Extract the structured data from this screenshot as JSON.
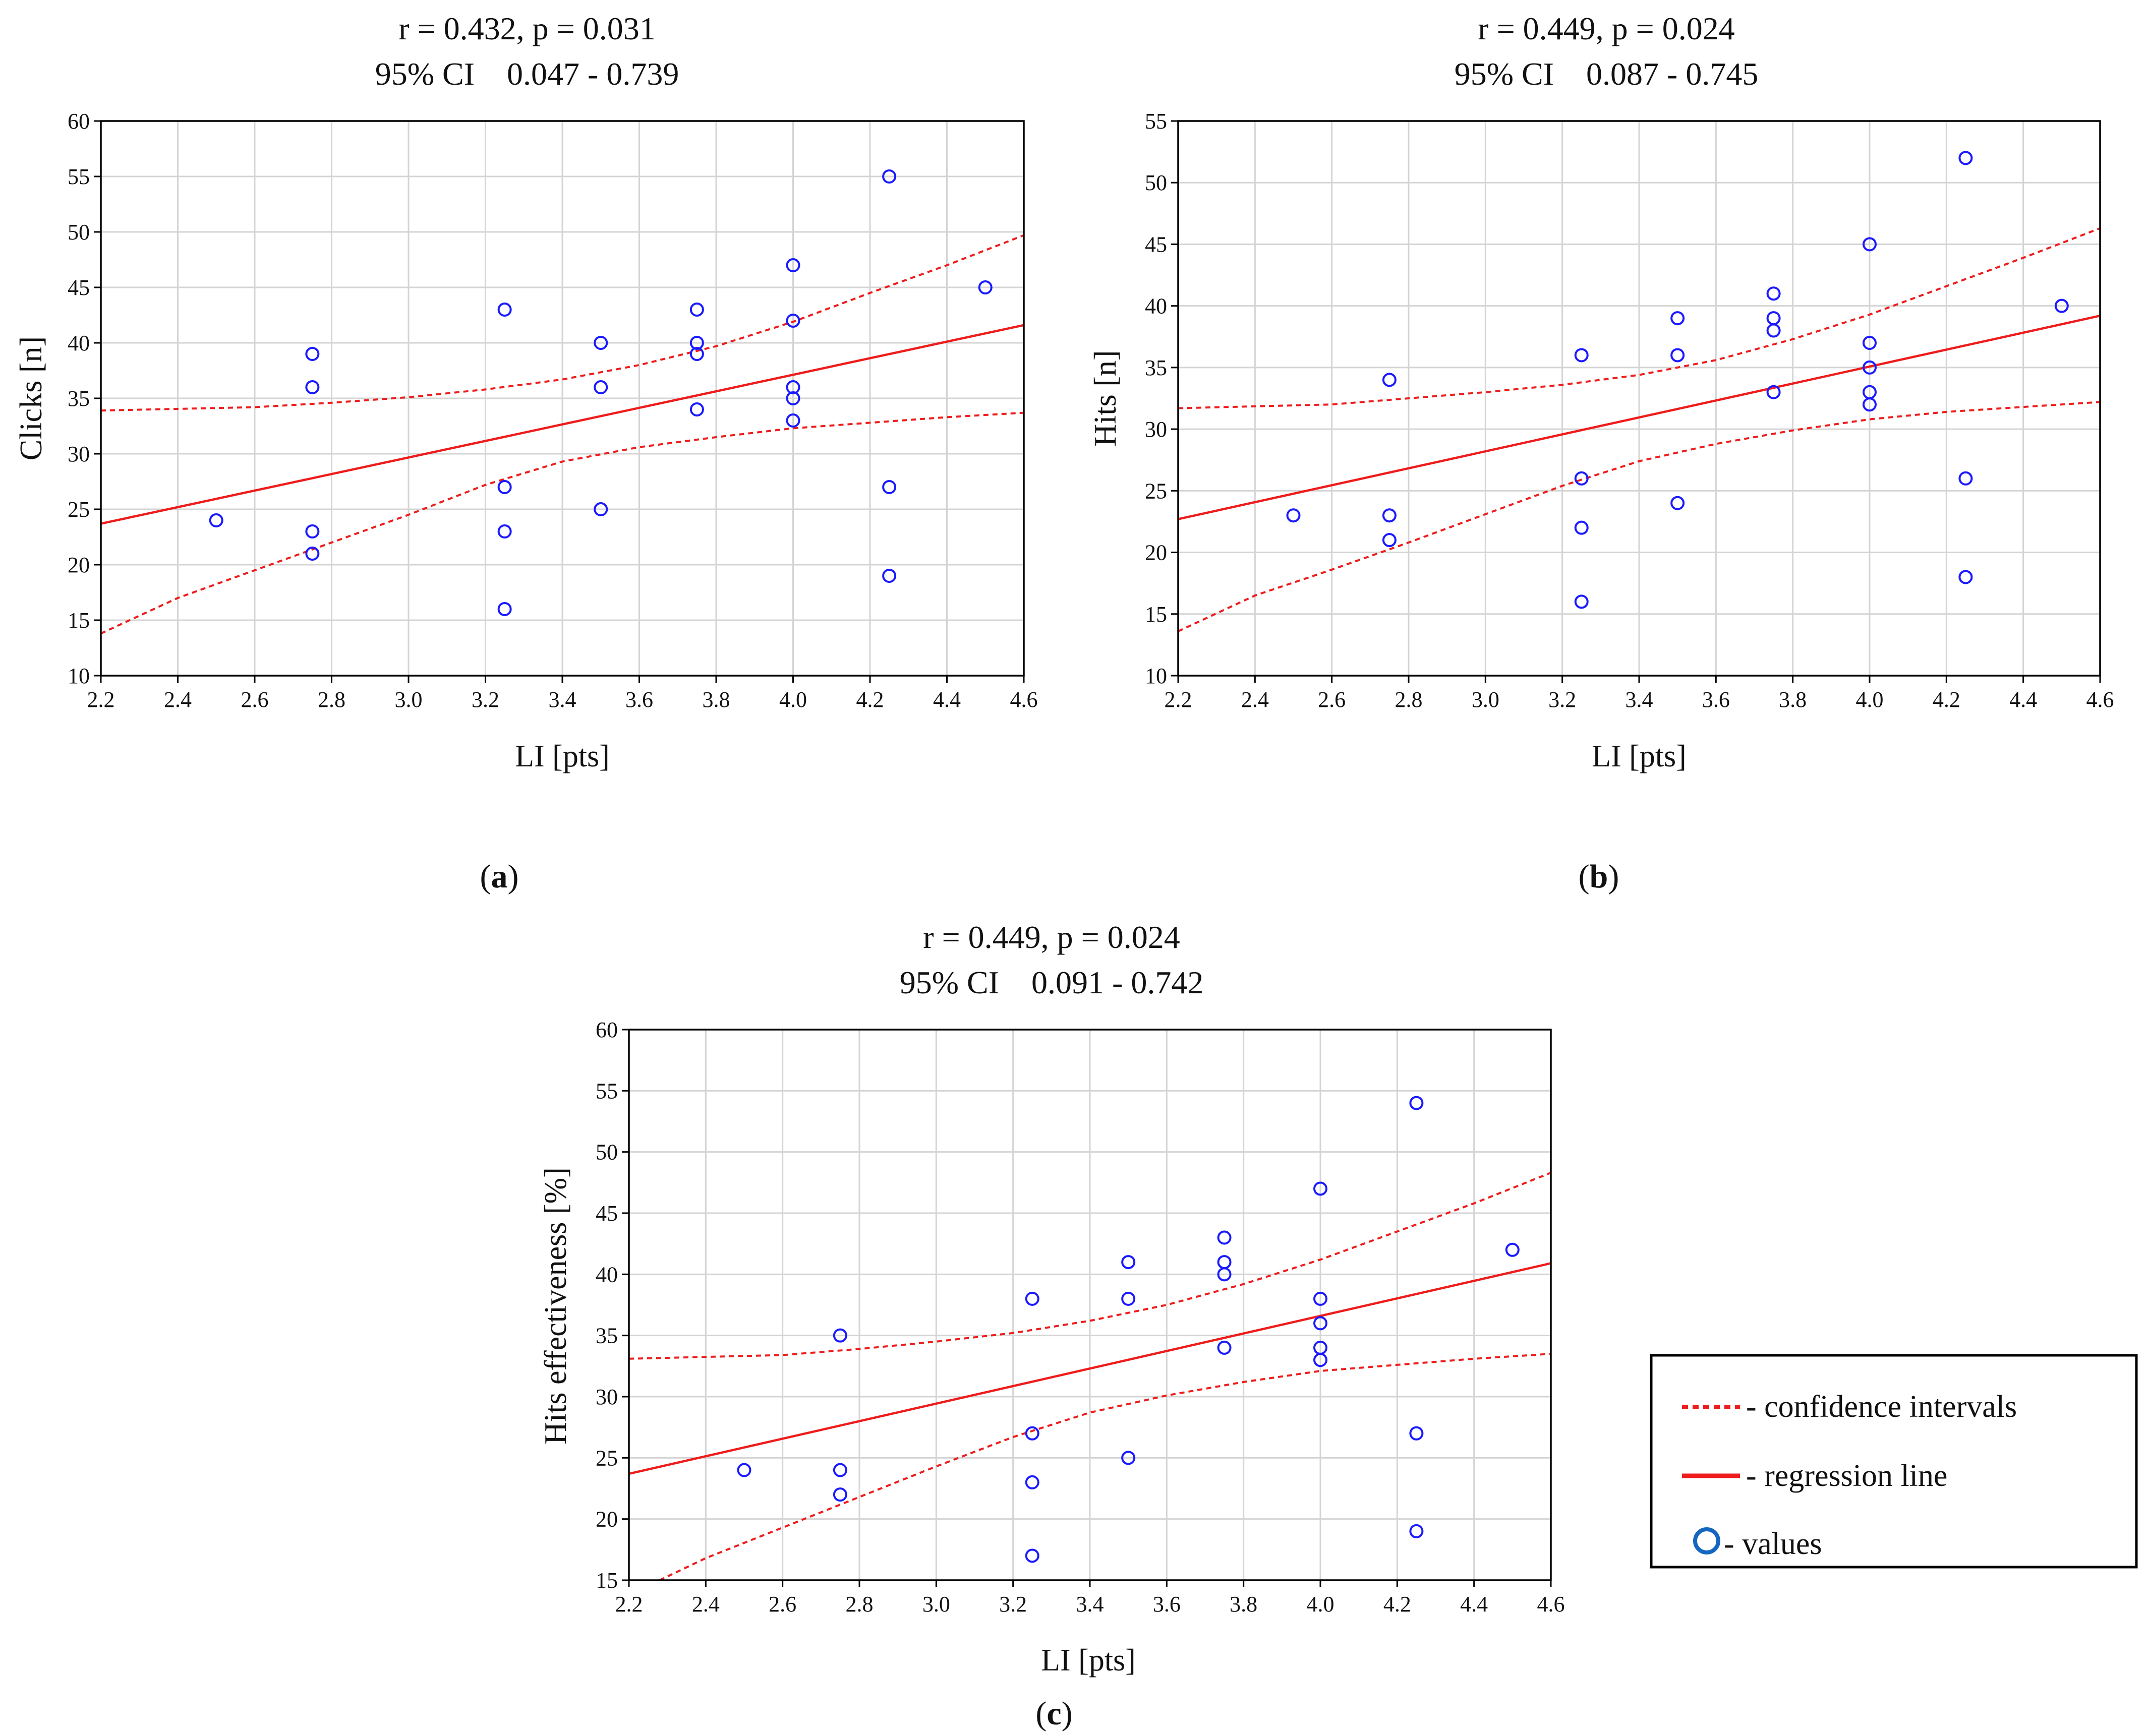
{
  "chart_data": [
    {
      "type": "scatter",
      "panel_label": "(a)",
      "panel_letter": "a",
      "title_line1": "r = 0.432, p = 0.031",
      "title_line2": "95% CI    0.047 - 0.739",
      "xlabel": "LI [pts]",
      "ylabel": "Clicks [n]",
      "xlim": [
        2.2,
        4.6
      ],
      "ylim": [
        10,
        60
      ],
      "xticks": [
        2.2,
        2.4,
        2.6,
        2.8,
        3.0,
        3.2,
        3.4,
        3.6,
        3.8,
        4.0,
        4.2,
        4.4,
        4.6
      ],
      "xtick_labels": [
        "2.2",
        "2.4",
        "2.6",
        "2.8",
        "3.0",
        "3.2",
        "3.4",
        "3.6",
        "3.8",
        "4.0",
        "4.2",
        "4.4",
        "4.6"
      ],
      "yticks": [
        10,
        15,
        20,
        25,
        30,
        35,
        40,
        45,
        50,
        55,
        60
      ],
      "ytick_labels": [
        "10",
        "15",
        "20",
        "25",
        "30",
        "35",
        "40",
        "45",
        "50",
        "55",
        "60"
      ],
      "points": [
        [
          2.5,
          24
        ],
        [
          2.75,
          39
        ],
        [
          2.75,
          36
        ],
        [
          2.75,
          23
        ],
        [
          2.75,
          21
        ],
        [
          3.25,
          43
        ],
        [
          3.25,
          27
        ],
        [
          3.25,
          23
        ],
        [
          3.25,
          16
        ],
        [
          3.5,
          40
        ],
        [
          3.5,
          36
        ],
        [
          3.5,
          25
        ],
        [
          3.75,
          43
        ],
        [
          3.75,
          40
        ],
        [
          3.75,
          39
        ],
        [
          3.75,
          34
        ],
        [
          4.0,
          47
        ],
        [
          4.0,
          42
        ],
        [
          4.0,
          36
        ],
        [
          4.0,
          35
        ],
        [
          4.0,
          33
        ],
        [
          4.25,
          55
        ],
        [
          4.25,
          27
        ],
        [
          4.25,
          19
        ],
        [
          4.5,
          45
        ]
      ],
      "regression": [
        [
          2.2,
          23.7
        ],
        [
          4.6,
          41.6
        ]
      ],
      "ci_upper": [
        [
          2.2,
          33.9
        ],
        [
          2.6,
          34.2
        ],
        [
          2.8,
          34.6
        ],
        [
          3.0,
          35.1
        ],
        [
          3.2,
          35.8
        ],
        [
          3.4,
          36.7
        ],
        [
          3.6,
          38.0
        ],
        [
          3.8,
          39.7
        ],
        [
          4.0,
          41.9
        ],
        [
          4.2,
          44.5
        ],
        [
          4.4,
          47.0
        ],
        [
          4.6,
          49.7
        ]
      ],
      "ci_lower": [
        [
          2.2,
          13.8
        ],
        [
          2.4,
          17.0
        ],
        [
          2.6,
          19.5
        ],
        [
          2.8,
          22.0
        ],
        [
          3.0,
          24.5
        ],
        [
          3.2,
          27.2
        ],
        [
          3.4,
          29.3
        ],
        [
          3.6,
          30.6
        ],
        [
          3.8,
          31.5
        ],
        [
          4.0,
          32.3
        ],
        [
          4.2,
          32.8
        ],
        [
          4.4,
          33.3
        ],
        [
          4.6,
          33.7
        ]
      ]
    },
    {
      "type": "scatter",
      "panel_label": "(b)",
      "panel_letter": "b",
      "title_line1": "r = 0.449, p = 0.024",
      "title_line2": "95% CI    0.087 - 0.745",
      "xlabel": "LI [pts]",
      "ylabel": "Hits [n]",
      "xlim": [
        2.2,
        4.6
      ],
      "ylim": [
        10,
        55
      ],
      "xticks": [
        2.2,
        2.4,
        2.6,
        2.8,
        3.0,
        3.2,
        3.4,
        3.6,
        3.8,
        4.0,
        4.2,
        4.4,
        4.6
      ],
      "xtick_labels": [
        "2.2",
        "2.4",
        "2.6",
        "2.8",
        "3.0",
        "3.2",
        "3.4",
        "3.6",
        "3.8",
        "4.0",
        "4.2",
        "4.4",
        "4.6"
      ],
      "yticks": [
        10,
        15,
        20,
        25,
        30,
        35,
        40,
        45,
        50,
        55
      ],
      "ytick_labels": [
        "10",
        "15",
        "20",
        "25",
        "30",
        "35",
        "40",
        "45",
        "50",
        "55"
      ],
      "points": [
        [
          2.5,
          23
        ],
        [
          2.75,
          34
        ],
        [
          2.75,
          23
        ],
        [
          2.75,
          21
        ],
        [
          3.25,
          36
        ],
        [
          3.25,
          26
        ],
        [
          3.25,
          22
        ],
        [
          3.25,
          16
        ],
        [
          3.5,
          39
        ],
        [
          3.5,
          36
        ],
        [
          3.5,
          24
        ],
        [
          3.75,
          41
        ],
        [
          3.75,
          39
        ],
        [
          3.75,
          38
        ],
        [
          3.75,
          33
        ],
        [
          4.0,
          45
        ],
        [
          4.0,
          37
        ],
        [
          4.0,
          35
        ],
        [
          4.0,
          33
        ],
        [
          4.0,
          32
        ],
        [
          4.25,
          52
        ],
        [
          4.25,
          26
        ],
        [
          4.25,
          18
        ],
        [
          4.5,
          40
        ]
      ],
      "regression": [
        [
          2.2,
          22.7
        ],
        [
          4.6,
          39.2
        ]
      ],
      "ci_upper": [
        [
          2.2,
          31.7
        ],
        [
          2.6,
          32.0
        ],
        [
          2.8,
          32.5
        ],
        [
          3.0,
          33.0
        ],
        [
          3.2,
          33.6
        ],
        [
          3.4,
          34.4
        ],
        [
          3.6,
          35.6
        ],
        [
          3.8,
          37.3
        ],
        [
          4.0,
          39.3
        ],
        [
          4.2,
          41.6
        ],
        [
          4.4,
          43.9
        ],
        [
          4.6,
          46.3
        ]
      ],
      "ci_lower": [
        [
          2.2,
          13.6
        ],
        [
          2.4,
          16.5
        ],
        [
          2.6,
          18.6
        ],
        [
          2.8,
          20.8
        ],
        [
          3.0,
          23.1
        ],
        [
          3.2,
          25.4
        ],
        [
          3.4,
          27.4
        ],
        [
          3.6,
          28.8
        ],
        [
          3.8,
          29.9
        ],
        [
          4.0,
          30.8
        ],
        [
          4.2,
          31.4
        ],
        [
          4.4,
          31.8
        ],
        [
          4.6,
          32.2
        ]
      ]
    },
    {
      "type": "scatter",
      "panel_label": "(c)",
      "panel_letter": "c",
      "title_line1": "r = 0.449, p = 0.024",
      "title_line2": "95% CI    0.091 - 0.742",
      "xlabel": "LI [pts]",
      "ylabel": "Hits effectiveness [%]",
      "xlim": [
        2.2,
        4.6
      ],
      "ylim": [
        15,
        60
      ],
      "xticks": [
        2.2,
        2.4,
        2.6,
        2.8,
        3.0,
        3.2,
        3.4,
        3.6,
        3.8,
        4.0,
        4.2,
        4.4,
        4.6
      ],
      "xtick_labels": [
        "2.2",
        "2.4",
        "2.6",
        "2.8",
        "3.0",
        "3.2",
        "3.4",
        "3.6",
        "3.8",
        "4.0",
        "4.2",
        "4.4",
        "4.6"
      ],
      "yticks": [
        15,
        20,
        25,
        30,
        35,
        40,
        45,
        50,
        55,
        60
      ],
      "ytick_labels": [
        "15",
        "20",
        "25",
        "30",
        "35",
        "40",
        "45",
        "50",
        "55",
        "60"
      ],
      "points": [
        [
          2.5,
          24
        ],
        [
          2.75,
          35
        ],
        [
          2.75,
          24
        ],
        [
          2.75,
          22
        ],
        [
          3.25,
          38
        ],
        [
          3.25,
          27
        ],
        [
          3.25,
          23
        ],
        [
          3.25,
          17
        ],
        [
          3.5,
          41
        ],
        [
          3.5,
          38
        ],
        [
          3.5,
          25
        ],
        [
          3.75,
          43
        ],
        [
          3.75,
          41
        ],
        [
          3.75,
          40
        ],
        [
          3.75,
          34
        ],
        [
          4.0,
          47
        ],
        [
          4.0,
          38
        ],
        [
          4.0,
          36
        ],
        [
          4.0,
          34
        ],
        [
          4.0,
          33
        ],
        [
          4.25,
          54
        ],
        [
          4.25,
          27
        ],
        [
          4.25,
          19
        ],
        [
          4.5,
          42
        ]
      ],
      "regression": [
        [
          2.2,
          23.7
        ],
        [
          4.6,
          40.9
        ]
      ],
      "ci_upper": [
        [
          2.2,
          33.1
        ],
        [
          2.6,
          33.4
        ],
        [
          2.8,
          33.9
        ],
        [
          3.0,
          34.5
        ],
        [
          3.2,
          35.2
        ],
        [
          3.4,
          36.2
        ],
        [
          3.6,
          37.5
        ],
        [
          3.8,
          39.2
        ],
        [
          4.0,
          41.2
        ],
        [
          4.2,
          43.5
        ],
        [
          4.4,
          45.8
        ],
        [
          4.6,
          48.3
        ]
      ],
      "ci_lower": [
        [
          2.28,
          15.0
        ],
        [
          2.4,
          16.8
        ],
        [
          2.6,
          19.3
        ],
        [
          2.8,
          21.8
        ],
        [
          3.0,
          24.3
        ],
        [
          3.2,
          26.7
        ],
        [
          3.4,
          28.7
        ],
        [
          3.6,
          30.1
        ],
        [
          3.8,
          31.2
        ],
        [
          4.0,
          32.1
        ],
        [
          4.2,
          32.6
        ],
        [
          4.4,
          33.1
        ],
        [
          4.6,
          33.5
        ]
      ]
    }
  ],
  "legend": {
    "items": [
      {
        "label": "- confidence intervals",
        "style": "dotted"
      },
      {
        "label": "- regression line",
        "style": "solid"
      },
      {
        "label": "- values",
        "style": "circle"
      }
    ]
  },
  "colors": {
    "regression": "#ee1c1c",
    "ci": "#ee1c1c",
    "points": "#1a1aff",
    "legend_marker": "#1566c0"
  }
}
